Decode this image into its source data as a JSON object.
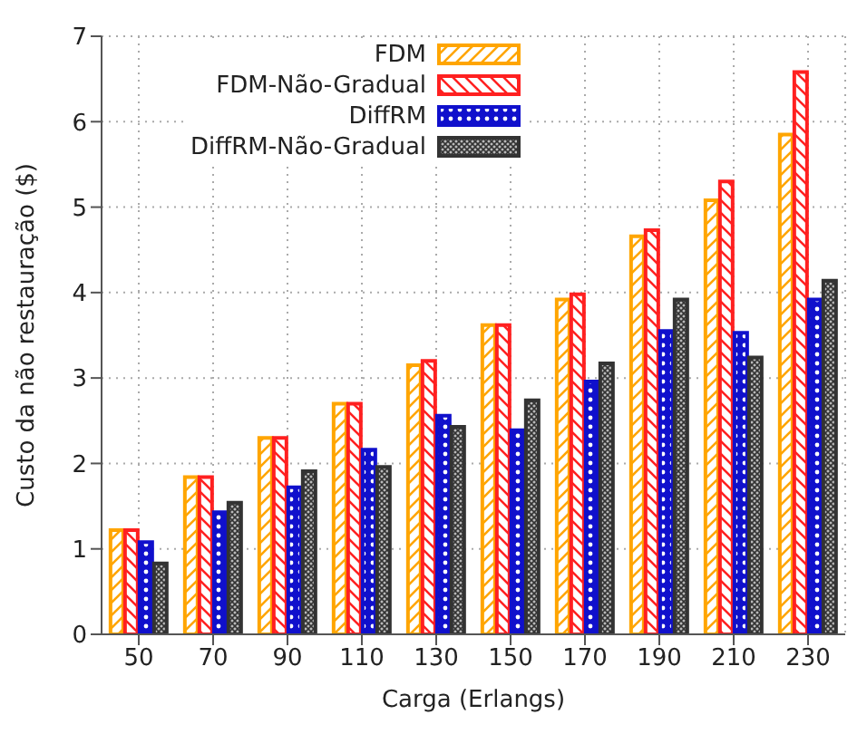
{
  "chart_data": {
    "type": "bar",
    "xlabel": "Carga (Erlangs)",
    "ylabel": "Custo da não restauração ($)",
    "categories": [
      "50",
      "70",
      "90",
      "110",
      "130",
      "150",
      "170",
      "190",
      "210",
      "230"
    ],
    "series": [
      {
        "name": "FDM",
        "color": "#ffa500",
        "values": [
          1.22,
          1.84,
          2.3,
          2.7,
          3.15,
          3.62,
          3.92,
          4.66,
          5.08,
          5.85
        ]
      },
      {
        "name": "FDM-Não-Gradual",
        "color": "#ff2020",
        "values": [
          1.22,
          1.84,
          2.3,
          2.7,
          3.2,
          3.62,
          3.98,
          4.73,
          5.3,
          6.58
        ]
      },
      {
        "name": "DiffRM",
        "color": "#1010cc",
        "values": [
          1.08,
          1.43,
          1.72,
          2.16,
          2.56,
          2.39,
          2.96,
          3.55,
          3.53,
          3.92
        ]
      },
      {
        "name": "DiffRM-Não-Gradual",
        "color": "#333333",
        "values": [
          0.83,
          1.54,
          1.91,
          1.96,
          2.43,
          2.74,
          3.17,
          3.92,
          3.24,
          4.14
        ]
      }
    ],
    "ylim": [
      0,
      7
    ],
    "yticks": [
      0,
      1,
      2,
      3,
      4,
      5,
      6,
      7
    ],
    "grid": true,
    "legend": "top left"
  }
}
